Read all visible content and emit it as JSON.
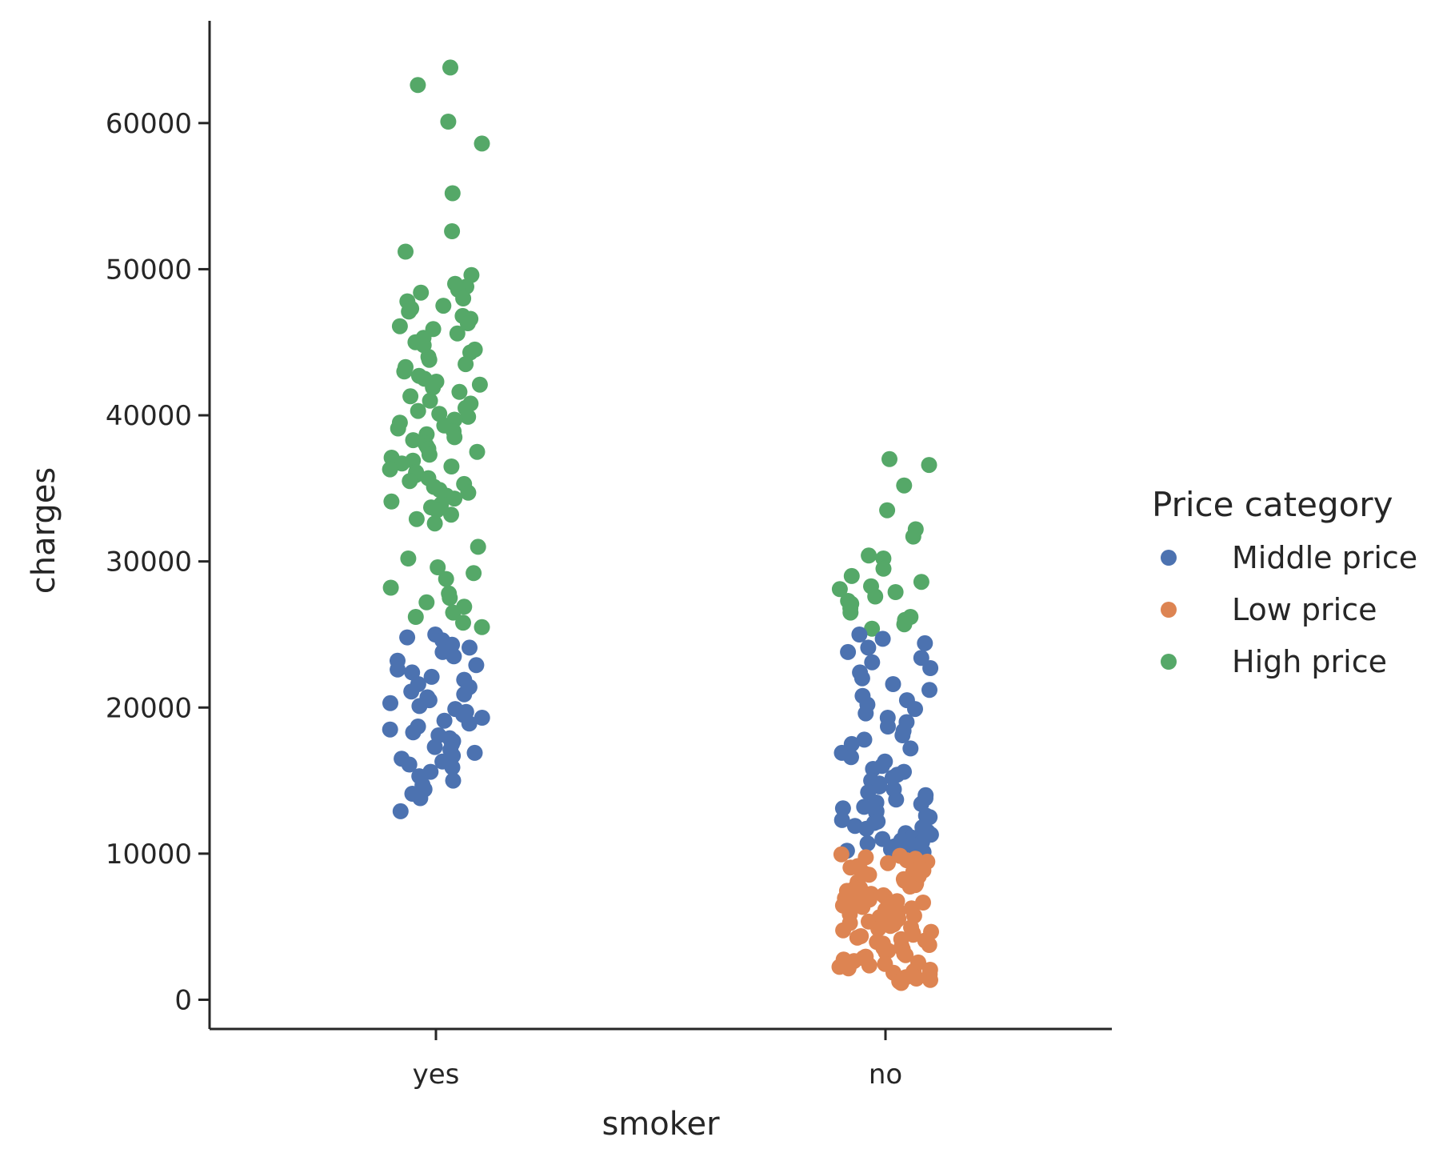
{
  "chart_data": {
    "type": "scatter",
    "subtype": "stripplot",
    "xlabel": "smoker",
    "ylabel": "charges",
    "categories": [
      "yes",
      "no"
    ],
    "ylim": [
      -2000,
      67000
    ],
    "yticks": [
      0,
      10000,
      20000,
      30000,
      40000,
      50000,
      60000
    ],
    "ytick_labels": [
      "0",
      "10000",
      "20000",
      "30000",
      "40000",
      "50000",
      "60000"
    ],
    "grid": false,
    "legend": {
      "title": "Price category",
      "placement": "right-outside",
      "entries": [
        "Middle price",
        "Low price",
        "High price"
      ]
    },
    "colors": {
      "Middle price": "#4c72b0",
      "Low price": "#dd8452",
      "High price": "#55a868"
    },
    "series": [
      {
        "name": "High price",
        "category": "yes",
        "values": [
          63800,
          62600,
          60100,
          58600,
          55200,
          52600,
          51200,
          49600,
          49000,
          48800,
          48600,
          48400,
          48000,
          47800,
          47500,
          47300,
          47100,
          46800,
          46600,
          46300,
          46100,
          45900,
          45600,
          45300,
          45000,
          44800,
          44500,
          44300,
          44000,
          43800,
          43500,
          43300,
          43000,
          42700,
          42500,
          42300,
          42100,
          41900,
          41600,
          41300,
          41000,
          40800,
          40500,
          40300,
          40100,
          39900,
          39700,
          39500,
          39300,
          39100,
          38900,
          38700,
          38500,
          38300,
          38100,
          37900,
          37700,
          37500,
          37300,
          37100,
          36900,
          36700,
          36500,
          36300,
          36100,
          35900,
          35700,
          35500,
          35300,
          35100,
          34900,
          34700,
          34500,
          34300,
          34100,
          33900,
          33700,
          33500,
          33200,
          32900,
          32600,
          31000,
          30200,
          29600,
          29200,
          28800,
          28200,
          27800,
          27500,
          27200,
          26900,
          26500,
          26200,
          25800,
          25500
        ]
      },
      {
        "name": "Middle price",
        "category": "yes",
        "values": [
          25000,
          24800,
          24600,
          24300,
          24100,
          23800,
          23500,
          23200,
          22900,
          22600,
          22400,
          22100,
          21900,
          21600,
          21400,
          21100,
          20900,
          20700,
          20500,
          20300,
          20100,
          19900,
          19700,
          19500,
          19300,
          19100,
          18900,
          18700,
          18500,
          18300,
          18100,
          17900,
          17700,
          17500,
          17300,
          17100,
          16900,
          16700,
          16500,
          16300,
          16100,
          15900,
          15600,
          15300,
          15000,
          14700,
          14400,
          14100,
          13800,
          12900
        ]
      },
      {
        "name": "High price",
        "category": "no",
        "values": [
          37000,
          36600,
          35200,
          33500,
          32200,
          31700,
          30400,
          30200,
          29500,
          29000,
          28600,
          28300,
          28100,
          27900,
          27600,
          27300,
          27100,
          26800,
          26500,
          26200,
          26000,
          25700,
          25400
        ]
      },
      {
        "name": "Middle price",
        "category": "no",
        "values": [
          25000,
          24700,
          24400,
          24100,
          23800,
          23400,
          23100,
          22700,
          22400,
          22000,
          21600,
          21200,
          20800,
          20500,
          20200,
          19900,
          19600,
          19300,
          19000,
          18700,
          18400,
          18100,
          17800,
          17500,
          17200,
          16900,
          16600,
          16300,
          16000,
          15800,
          15600,
          15400,
          15200,
          15000,
          14800,
          14600,
          14400,
          14200,
          14000,
          13800,
          13700,
          13500,
          13400,
          13200,
          13100,
          12900,
          12800,
          12600,
          12500,
          12300,
          12200,
          12100,
          11900,
          11800,
          11700,
          11500,
          11400,
          11300,
          11100,
          11000,
          10900,
          10800,
          10700,
          10600,
          10500,
          10400,
          10300,
          10200,
          10100,
          10050
        ]
      },
      {
        "name": "Low price",
        "category": "no",
        "values": [
          9950,
          9850,
          9750,
          9650,
          9550,
          9450,
          9350,
          9250,
          9150,
          9050,
          8950,
          8850,
          8750,
          8650,
          8550,
          8450,
          8350,
          8250,
          8150,
          8050,
          7950,
          7850,
          7750,
          7650,
          7550,
          7450,
          7350,
          7250,
          7150,
          7050,
          6950,
          6850,
          6750,
          6650,
          6550,
          6450,
          6350,
          6250,
          6150,
          6050,
          5950,
          5850,
          5750,
          5650,
          5550,
          5450,
          5350,
          5250,
          5150,
          5050,
          4950,
          4850,
          4750,
          4650,
          4550,
          4450,
          4350,
          4250,
          4150,
          4050,
          3950,
          3850,
          3750,
          3650,
          3550,
          3450,
          3350,
          3250,
          3150,
          3050,
          2950,
          2850,
          2750,
          2650,
          2550,
          2450,
          2350,
          2250,
          2150,
          2050,
          1950,
          1850,
          1750,
          1650,
          1550,
          1450,
          1350,
          1250,
          1150
        ]
      }
    ]
  }
}
